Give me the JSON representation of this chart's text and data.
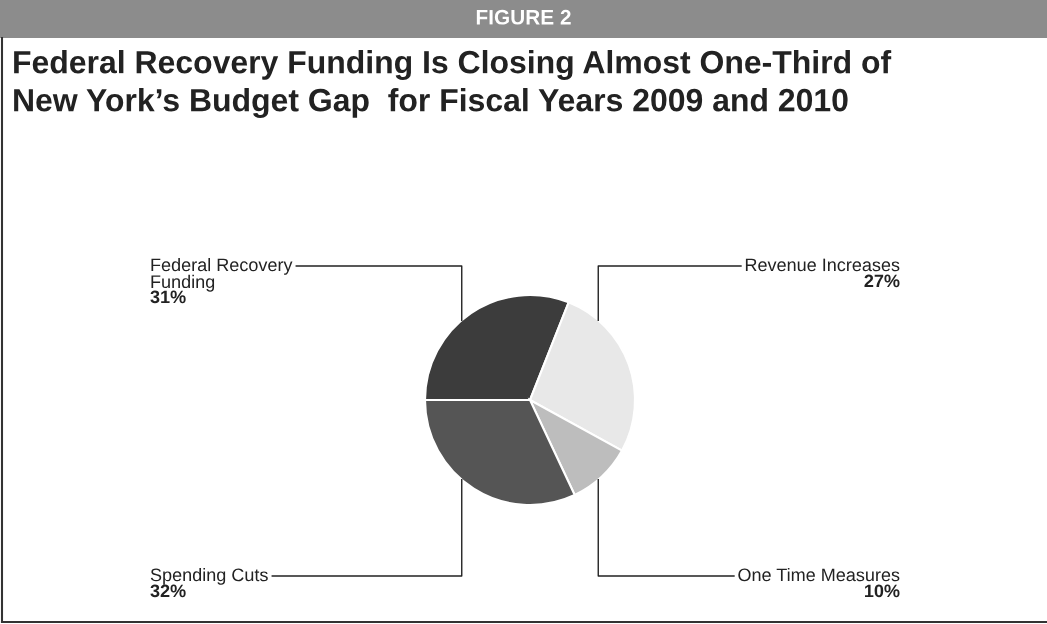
{
  "chart_data": {
    "type": "pie",
    "title": "Federal Recovery Funding Is Closing Almost One-Third of\nNew York’s Budget Gap  for Fiscal Years 2009 and 2010",
    "annotations": [
      "FIGURE 2"
    ],
    "categories": [
      "Federal Recovery\nFunding",
      "Revenue Increases",
      "One Time Measures",
      "Spending Cuts"
    ],
    "values": [
      31,
      27,
      10,
      32
    ],
    "value_labels": [
      "31%",
      "27%",
      "10%",
      "32%"
    ],
    "colors": [
      "#3c3c3c",
      "#e8e8e8",
      "#bdbdbd",
      "#555555"
    ],
    "legend": false
  }
}
